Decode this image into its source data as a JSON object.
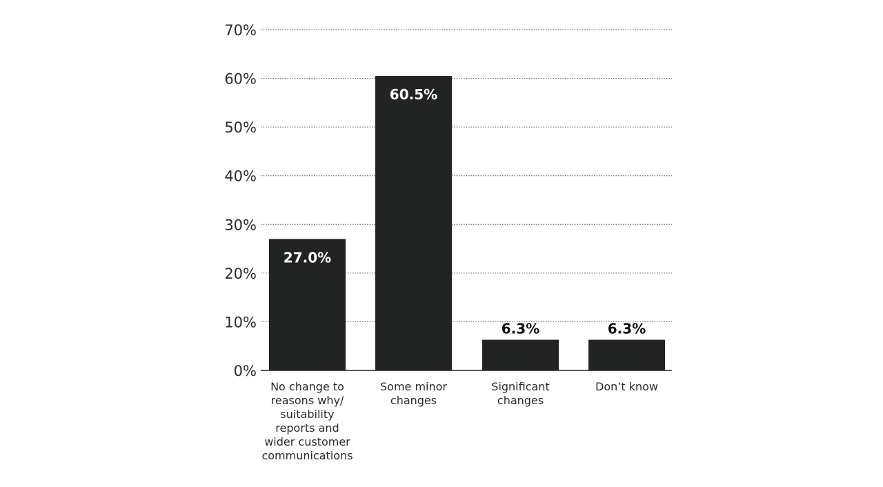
{
  "chart_data": {
    "type": "bar",
    "categories": [
      [
        "No change to",
        "reasons why/",
        "suitability",
        "reports and",
        "wider customer",
        "communications"
      ],
      [
        "Some minor",
        "changes"
      ],
      [
        "Significant",
        "changes"
      ],
      [
        "Don’t know"
      ]
    ],
    "values": [
      27.0,
      60.5,
      6.3,
      6.3
    ],
    "value_labels": [
      "27.0%",
      "60.5%",
      "6.3%",
      "6.3%"
    ],
    "yticks": [
      0,
      10,
      20,
      30,
      40,
      50,
      60,
      70
    ],
    "ytick_labels": [
      "0%",
      "10%",
      "20%",
      "30%",
      "40%",
      "50%",
      "60%",
      "70%"
    ],
    "ylim": [
      0,
      70
    ],
    "title": "",
    "xlabel": "",
    "ylabel": "",
    "grid": true,
    "grid_style": "dotted",
    "bar_color": "#222423",
    "label_inside_color": "#ffffff",
    "label_outside_color": "#111111"
  }
}
